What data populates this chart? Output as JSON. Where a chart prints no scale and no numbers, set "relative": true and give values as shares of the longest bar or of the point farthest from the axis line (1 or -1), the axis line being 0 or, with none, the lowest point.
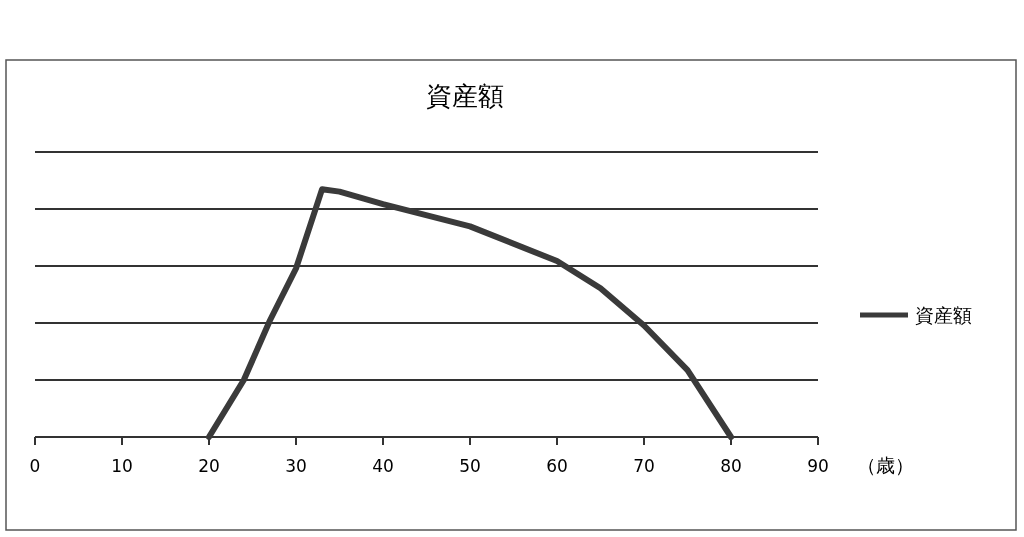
{
  "chart_data": {
    "type": "line",
    "title": "資産額",
    "xlabel": "（歳）",
    "relative": true,
    "x": [
      20,
      24,
      27,
      30,
      33,
      35,
      40,
      50,
      60,
      65,
      70,
      75,
      80
    ],
    "series": [
      {
        "name": "資産額",
        "color": "#3a3a3a",
        "values": [
          0,
          0.23,
          0.47,
          0.68,
          1,
          0.99,
          0.94,
          0.85,
          0.71,
          0.6,
          0.45,
          0.27,
          0
        ]
      }
    ],
    "xlim": [
      0,
      90
    ],
    "xticks": [
      0,
      10,
      20,
      30,
      40,
      50,
      60,
      70,
      80,
      90
    ],
    "grid": "y",
    "legend": "right",
    "marker": "none",
    "line_style": "solid"
  }
}
